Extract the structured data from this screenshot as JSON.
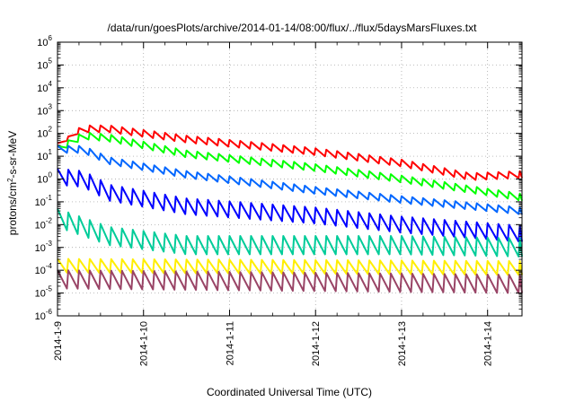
{
  "chart_data": {
    "type": "line",
    "title": "/data/run/goesPlots/archive/2014-01-14/08:00/flux/../flux/5daysMarsFluxes.txt",
    "xlabel": "Coordinated Universal Time (UTC)",
    "ylabel": {
      "prefix": "protons/cm",
      "sup": "2",
      "suffix": "-s-sr-MeV"
    },
    "yscale": "log",
    "ylim_exp": [
      -6,
      6
    ],
    "y_tick_exponents": [
      -6,
      -5,
      -4,
      -3,
      -2,
      -1,
      0,
      1,
      2,
      3,
      4,
      5,
      6
    ],
    "y_tick_base": "10",
    "xlim_days": [
      0,
      5.4
    ],
    "x_ticks": [
      {
        "label": "2014-1-9",
        "day": 0
      },
      {
        "label": "2014-1-10",
        "day": 1
      },
      {
        "label": "2014-1-11",
        "day": 2
      },
      {
        "label": "2014-1-12",
        "day": 3
      },
      {
        "label": "2014-1-13",
        "day": 4
      },
      {
        "label": "2014-1-14",
        "day": 5
      }
    ],
    "grid": true,
    "legend": "none",
    "sawtooth_period_days": 0.125,
    "series": [
      {
        "color": "#ff0000",
        "start_day": 0.0,
        "end_day": 5.4,
        "trend_log10": [
          [
            0.0,
            1.5
          ],
          [
            0.3,
            2.2
          ],
          [
            0.6,
            2.2
          ],
          [
            1.5,
            1.75
          ],
          [
            3.0,
            1.2
          ],
          [
            4.0,
            0.7
          ],
          [
            4.8,
            0.1
          ],
          [
            5.4,
            0.2
          ]
        ],
        "amp_log10": 0.3,
        "onset_day": 0.25
      },
      {
        "color": "#00ff00",
        "start_day": 0.0,
        "end_day": 5.4,
        "trend_log10": [
          [
            0.0,
            1.3
          ],
          [
            0.3,
            1.9
          ],
          [
            0.6,
            1.8
          ],
          [
            1.5,
            1.1
          ],
          [
            3.0,
            0.5
          ],
          [
            4.0,
            0.0
          ],
          [
            5.4,
            -0.8
          ]
        ],
        "amp_log10": 0.3
      },
      {
        "color": "#0066ff",
        "start_day": 0.0,
        "end_day": 5.4,
        "trend_log10": [
          [
            0.0,
            1.3
          ],
          [
            0.3,
            1.3
          ],
          [
            0.6,
            0.8
          ],
          [
            1.5,
            0.2
          ],
          [
            3.0,
            -0.5
          ],
          [
            4.0,
            -0.9
          ],
          [
            5.4,
            -1.4
          ]
        ],
        "amp_log10": 0.3
      },
      {
        "color": "#0000ff",
        "start_day": 0.0,
        "end_day": 5.4,
        "trend_log10": [
          [
            0.0,
            0.1
          ],
          [
            0.3,
            0.0
          ],
          [
            0.6,
            -0.6
          ],
          [
            1.5,
            -1.2
          ],
          [
            3.0,
            -1.6
          ],
          [
            4.0,
            -2.0
          ],
          [
            5.4,
            -2.4
          ]
        ],
        "amp_log10": 0.7
      },
      {
        "color": "#00cc99",
        "start_day": 0.0,
        "end_day": 5.4,
        "trend_log10": [
          [
            0.0,
            -1.7
          ],
          [
            0.6,
            -2.5
          ],
          [
            1.5,
            -2.9
          ],
          [
            3.0,
            -2.9
          ],
          [
            4.0,
            -2.9
          ],
          [
            5.4,
            -3.0
          ]
        ],
        "amp_log10": 0.8
      },
      {
        "color": "#ffee00",
        "start_day": 0.0,
        "end_day": 5.4,
        "trend_log10": [
          [
            0.0,
            -3.8
          ],
          [
            5.4,
            -3.9
          ]
        ],
        "amp_log10": 0.6
      },
      {
        "color": "#994466",
        "start_day": 0.0,
        "end_day": 5.4,
        "trend_log10": [
          [
            0.0,
            -4.4
          ],
          [
            5.4,
            -4.6
          ]
        ],
        "amp_log10": 0.8
      }
    ]
  }
}
